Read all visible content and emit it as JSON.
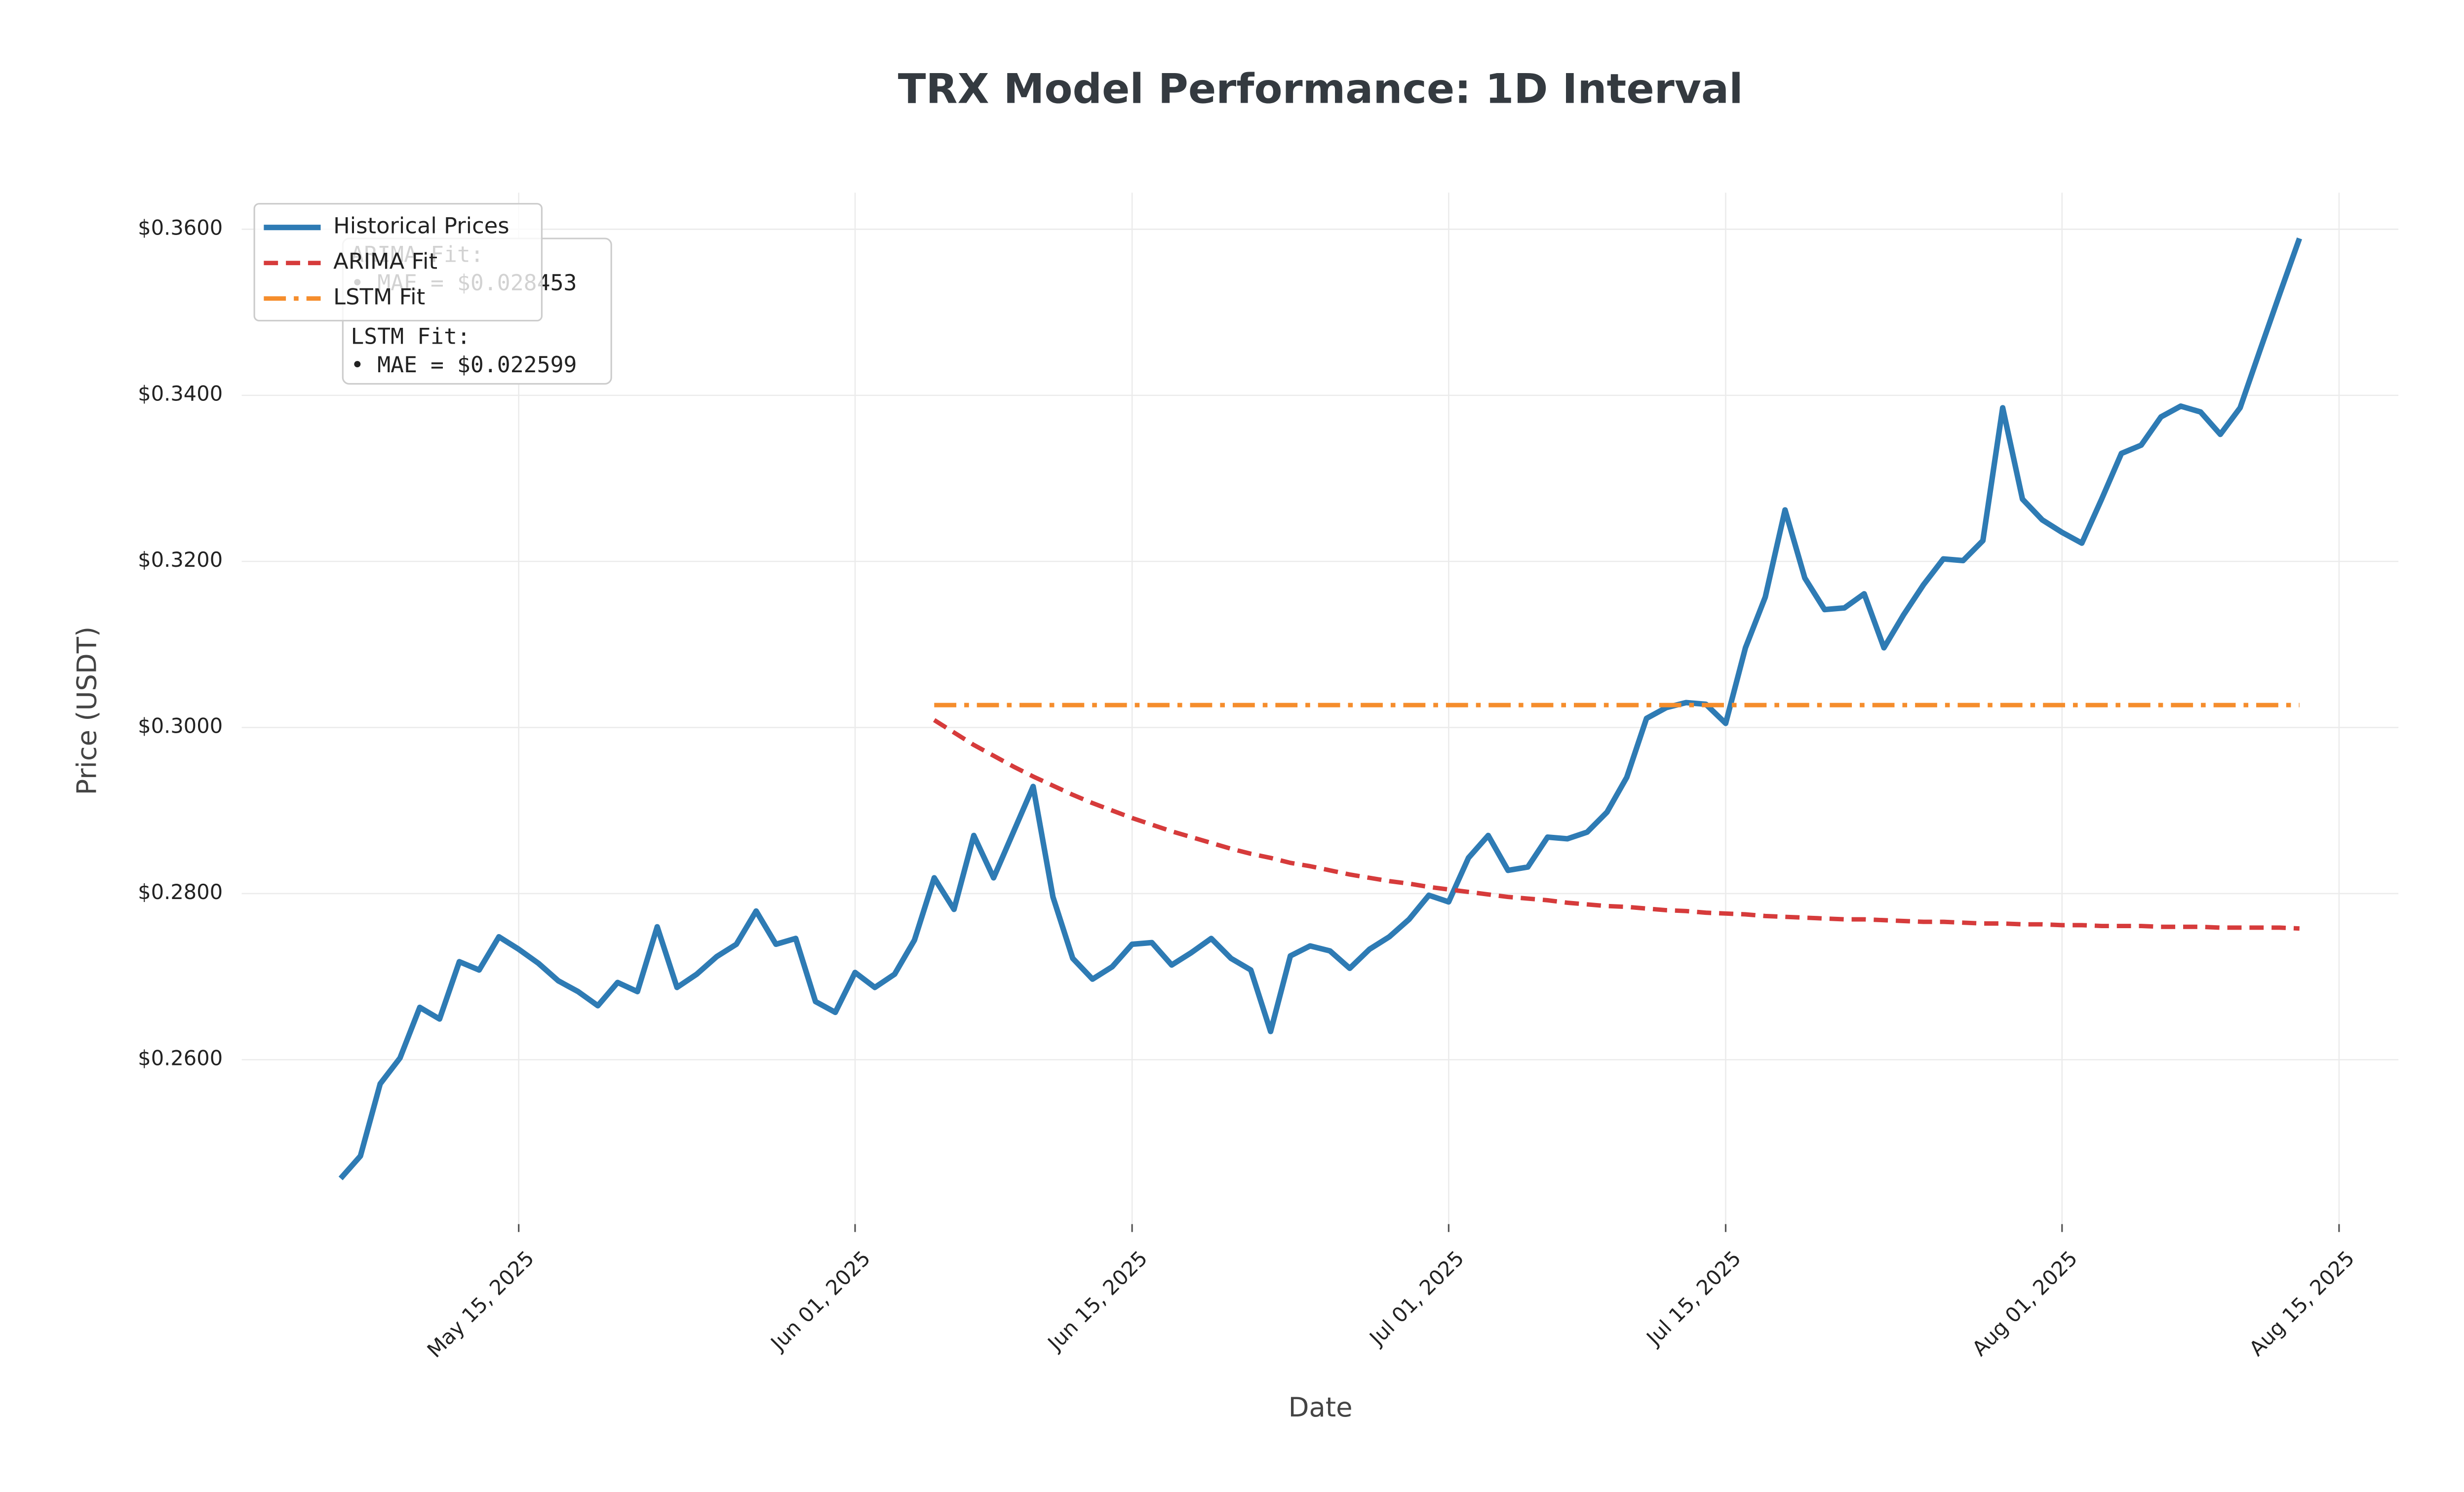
{
  "chart_data": {
    "type": "line",
    "title": "TRX Model Performance: 1D Interval",
    "x_label": "Date",
    "y_label": "Price (USDT)",
    "x": [
      "2025-05-06",
      "2025-05-07",
      "2025-05-08",
      "2025-05-09",
      "2025-05-10",
      "2025-05-11",
      "2025-05-12",
      "2025-05-13",
      "2025-05-14",
      "2025-05-15",
      "2025-05-16",
      "2025-05-17",
      "2025-05-18",
      "2025-05-19",
      "2025-05-20",
      "2025-05-21",
      "2025-05-22",
      "2025-05-23",
      "2025-05-24",
      "2025-05-25",
      "2025-05-26",
      "2025-05-27",
      "2025-05-28",
      "2025-05-29",
      "2025-05-30",
      "2025-05-31",
      "2025-06-01",
      "2025-06-02",
      "2025-06-03",
      "2025-06-04",
      "2025-06-05",
      "2025-06-06",
      "2025-06-07",
      "2025-06-08",
      "2025-06-09",
      "2025-06-10",
      "2025-06-11",
      "2025-06-12",
      "2025-06-13",
      "2025-06-14",
      "2025-06-15",
      "2025-06-16",
      "2025-06-17",
      "2025-06-18",
      "2025-06-19",
      "2025-06-20",
      "2025-06-21",
      "2025-06-22",
      "2025-06-23",
      "2025-06-24",
      "2025-06-25",
      "2025-06-26",
      "2025-06-27",
      "2025-06-28",
      "2025-06-29",
      "2025-06-30",
      "2025-07-01",
      "2025-07-02",
      "2025-07-03",
      "2025-07-04",
      "2025-07-05",
      "2025-07-06",
      "2025-07-07",
      "2025-07-08",
      "2025-07-09",
      "2025-07-10",
      "2025-07-11",
      "2025-07-12",
      "2025-07-13",
      "2025-07-14",
      "2025-07-15",
      "2025-07-16",
      "2025-07-17",
      "2025-07-18",
      "2025-07-19",
      "2025-07-20",
      "2025-07-21",
      "2025-07-22",
      "2025-07-23",
      "2025-07-24",
      "2025-07-25",
      "2025-07-26",
      "2025-07-27",
      "2025-07-28",
      "2025-07-29",
      "2025-07-30",
      "2025-07-31",
      "2025-08-01",
      "2025-08-02",
      "2025-08-03",
      "2025-08-04",
      "2025-08-05",
      "2025-08-06",
      "2025-08-07",
      "2025-08-08",
      "2025-08-09",
      "2025-08-10",
      "2025-08-11",
      "2025-08-12",
      "2025-08-13"
    ],
    "series": [
      {
        "name": "Historical Prices",
        "color": "#2e7bb4",
        "linestyle": "solid",
        "values": [
          0.2457,
          0.2484,
          0.2571,
          0.2602,
          0.2663,
          0.2649,
          0.2718,
          0.2708,
          0.2748,
          0.2733,
          0.2716,
          0.2695,
          0.2682,
          0.2665,
          0.2693,
          0.2682,
          0.276,
          0.2687,
          0.2703,
          0.2724,
          0.2739,
          0.2779,
          0.2739,
          0.2746,
          0.267,
          0.2657,
          0.2705,
          0.2687,
          0.2703,
          0.2744,
          0.2819,
          0.2781,
          0.287,
          0.2819,
          0.2874,
          0.2929,
          0.2796,
          0.2722,
          0.2697,
          0.2712,
          0.2739,
          0.2741,
          0.2714,
          0.2729,
          0.2746,
          0.2722,
          0.2708,
          0.2634,
          0.2725,
          0.2737,
          0.2731,
          0.271,
          0.2733,
          0.2748,
          0.2769,
          0.2798,
          0.279,
          0.2843,
          0.287,
          0.2828,
          0.2832,
          0.2868,
          0.2866,
          0.2874,
          0.2898,
          0.294,
          0.3011,
          0.3024,
          0.303,
          0.3028,
          0.3005,
          0.3096,
          0.3157,
          0.3262,
          0.318,
          0.3142,
          0.3144,
          0.3161,
          0.3096,
          0.3136,
          0.3172,
          0.3203,
          0.3201,
          0.3225,
          0.3385,
          0.3275,
          0.325,
          0.3235,
          0.3222,
          0.3275,
          0.333,
          0.334,
          0.3374,
          0.3387,
          0.338,
          0.3353,
          0.3385,
          0.3454,
          0.3522,
          0.3589
        ]
      },
      {
        "name": "ARIMA Fit",
        "color": "#d63b3b",
        "linestyle": "dashed",
        "values": [
          null,
          null,
          null,
          null,
          null,
          null,
          null,
          null,
          null,
          null,
          null,
          null,
          null,
          null,
          null,
          null,
          null,
          null,
          null,
          null,
          null,
          null,
          null,
          null,
          null,
          null,
          null,
          null,
          null,
          null,
          0.3009,
          0.2994,
          0.2979,
          0.2966,
          0.2953,
          0.2941,
          0.293,
          0.2919,
          0.2909,
          0.29,
          0.2891,
          0.2883,
          0.2875,
          0.2868,
          0.2861,
          0.2854,
          0.2848,
          0.2843,
          0.2837,
          0.2833,
          0.2828,
          0.2823,
          0.2819,
          0.2815,
          0.2812,
          0.2808,
          0.2805,
          0.2802,
          0.2799,
          0.2796,
          0.2794,
          0.2792,
          0.2789,
          0.2787,
          0.2785,
          0.2784,
          0.2782,
          0.278,
          0.2779,
          0.2777,
          0.2776,
          0.2775,
          0.2773,
          0.2772,
          0.2771,
          0.277,
          0.2769,
          0.2769,
          0.2768,
          0.2767,
          0.2766,
          0.2766,
          0.2765,
          0.2764,
          0.2764,
          0.2763,
          0.2763,
          0.2762,
          0.2762,
          0.2761,
          0.2761,
          0.2761,
          0.276,
          0.276,
          0.276,
          0.2759,
          0.2759,
          0.2759,
          0.2759,
          0.2758
        ]
      },
      {
        "name": "LSTM Fit",
        "color": "#f58d2c",
        "linestyle": "dashdot",
        "values": [
          null,
          null,
          null,
          null,
          null,
          null,
          null,
          null,
          null,
          null,
          null,
          null,
          null,
          null,
          null,
          null,
          null,
          null,
          null,
          null,
          null,
          null,
          null,
          null,
          null,
          null,
          null,
          null,
          null,
          null,
          0.3027,
          0.3027,
          0.3027,
          0.3027,
          0.3027,
          0.3027,
          0.3027,
          0.3027,
          0.3027,
          0.3027,
          0.3027,
          0.3027,
          0.3027,
          0.3027,
          0.3027,
          0.3027,
          0.3027,
          0.3027,
          0.3027,
          0.3027,
          0.3027,
          0.3027,
          0.3027,
          0.3027,
          0.3027,
          0.3027,
          0.3027,
          0.3027,
          0.3027,
          0.3027,
          0.3027,
          0.3027,
          0.3027,
          0.3027,
          0.3027,
          0.3027,
          0.3027,
          0.3027,
          0.3027,
          0.3027,
          0.3027,
          0.3027,
          0.3027,
          0.3027,
          0.3027,
          0.3027,
          0.3027,
          0.3027,
          0.3027,
          0.3027,
          0.3027,
          0.3027,
          0.3027,
          0.3027,
          0.3027,
          0.3027,
          0.3027,
          0.3027,
          0.3027,
          0.3027,
          0.3027,
          0.3027,
          0.3027,
          0.3027,
          0.3027,
          0.3027,
          0.3027,
          0.3027,
          0.3027,
          0.3027
        ]
      }
    ],
    "xlim": [
      "2025-05-01",
      "2025-08-18"
    ],
    "xticks": [
      {
        "value": "2025-05-15",
        "label": "May 15, 2025"
      },
      {
        "value": "2025-06-01",
        "label": "Jun 01, 2025"
      },
      {
        "value": "2025-06-15",
        "label": "Jun 15, 2025"
      },
      {
        "value": "2025-07-01",
        "label": "Jul 01, 2025"
      },
      {
        "value": "2025-07-15",
        "label": "Jul 15, 2025"
      },
      {
        "value": "2025-08-01",
        "label": "Aug 01, 2025"
      },
      {
        "value": "2025-08-15",
        "label": "Aug 15, 2025"
      }
    ],
    "ylim": [
      0.2402,
      0.3644
    ],
    "yticks": [
      {
        "value": 0.26,
        "label": "$0.2600"
      },
      {
        "value": 0.28,
        "label": "$0.2800"
      },
      {
        "value": 0.3,
        "label": "$0.3000"
      },
      {
        "value": 0.32,
        "label": "$0.3200"
      },
      {
        "value": 0.34,
        "label": "$0.3400"
      },
      {
        "value": 0.36,
        "label": "$0.3600"
      }
    ],
    "grid": true,
    "legend": "upper left",
    "annotations": [
      {
        "title": "ARIMA Fit:",
        "text": "• MAE = $0.028453"
      },
      {
        "title": "LSTM Fit:",
        "text": "• MAE = $0.022599"
      }
    ]
  }
}
